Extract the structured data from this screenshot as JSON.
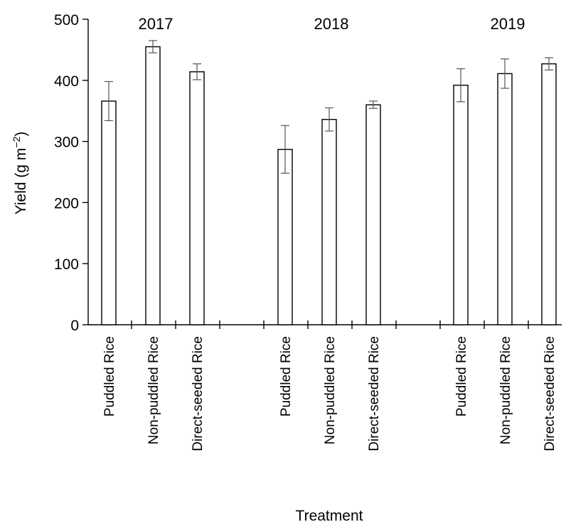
{
  "chart_data": {
    "type": "bar",
    "title": "",
    "xlabel": "Treatment",
    "ylabel_main": "Yield (g m",
    "ylabel_sup": "−2",
    "ylabel_close": ")",
    "ylim": [
      0,
      500
    ],
    "yticks": [
      0,
      100,
      200,
      300,
      400,
      500
    ],
    "grid": false,
    "groups": [
      {
        "label": "2017",
        "categories": [
          "Puddled Rice",
          "Non-puddled Rice",
          "Direct-seeded Rice"
        ],
        "values": [
          366,
          455,
          414
        ],
        "errors": [
          32,
          10,
          13
        ]
      },
      {
        "label": "2018",
        "categories": [
          "Puddled Rice",
          "Non-puddled Rice",
          "Direct-seeded Rice"
        ],
        "values": [
          287,
          336,
          360
        ],
        "errors": [
          39,
          19,
          6
        ]
      },
      {
        "label": "2019",
        "categories": [
          "Puddled Rice",
          "Non-puddled Rice",
          "Direct-seeded Rice"
        ],
        "values": [
          392,
          411,
          427
        ],
        "errors": [
          27,
          24,
          10
        ]
      }
    ]
  }
}
